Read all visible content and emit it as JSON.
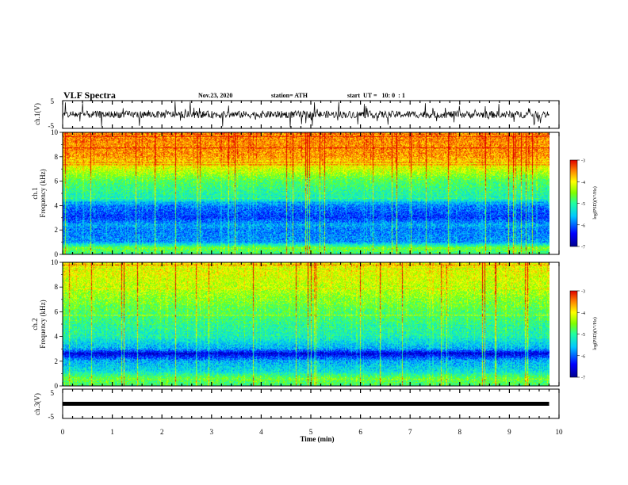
{
  "header": {
    "title": "VLF Spectra",
    "date": "Nov.23, 2020",
    "station": "station= ATH",
    "start": "start  UT =   10: 0  : 1"
  },
  "chart_data": [
    {
      "type": "line",
      "panel": "ch1-waveform",
      "ylabel": "ch.1(V)",
      "ylim": [
        -5,
        5
      ],
      "yticks": [
        "5",
        "-5"
      ],
      "xlim": [
        0,
        10
      ],
      "description_values": {
        "baseline": 0,
        "typical_range": [
          -1.2,
          1.2
        ],
        "spike_range": [
          -5,
          5
        ]
      },
      "color": "#000000"
    },
    {
      "type": "heatmap",
      "panel": "ch1-spectrogram",
      "ylabel": "ch.1\nFrequency (kHz)",
      "ylabel_lines": [
        "ch.1",
        "Frequency  (kHz)"
      ],
      "ylim": [
        0,
        10
      ],
      "yticks": [
        "0",
        "2",
        "4",
        "6",
        "8",
        "10"
      ],
      "xlim": [
        0,
        10
      ],
      "colorbar": {
        "label": "log(PSD)(V²/Hz)",
        "ticks": [
          "-3",
          "-4",
          "-5",
          "-6",
          "-7"
        ],
        "range": [
          -7,
          -3
        ]
      },
      "profile_by_freq_khz": [
        [
          0,
          -5.0
        ],
        [
          0.5,
          -4.6
        ],
        [
          1,
          -5.8
        ],
        [
          2,
          -5.9
        ],
        [
          2.4,
          -5.7
        ],
        [
          3,
          -6.2
        ],
        [
          4,
          -5.9
        ],
        [
          4.5,
          -5.2
        ],
        [
          6,
          -4.8
        ],
        [
          7,
          -4.2
        ],
        [
          8,
          -3.6
        ],
        [
          10,
          -3.5
        ]
      ]
    },
    {
      "type": "heatmap",
      "panel": "ch2-spectrogram",
      "ylabel": "ch.2\nFrequency (kHz)",
      "ylabel_lines": [
        "ch.2",
        "Frequency  (kHz)"
      ],
      "ylim": [
        0,
        10
      ],
      "yticks": [
        "0",
        "2",
        "4",
        "6",
        "8",
        "10"
      ],
      "xlim": [
        0,
        10
      ],
      "colorbar": {
        "label": "log(PSD)(V²/Hz)",
        "ticks": [
          "-3",
          "-4",
          "-5",
          "-6",
          "-7"
        ],
        "range": [
          -7,
          -3
        ]
      },
      "profile_by_freq_khz": [
        [
          0,
          -4.9
        ],
        [
          0.6,
          -4.7
        ],
        [
          1.2,
          -5.4
        ],
        [
          2,
          -5.7
        ],
        [
          2.6,
          -6.6
        ],
        [
          3,
          -5.7
        ],
        [
          4,
          -5.2
        ],
        [
          6,
          -4.8
        ],
        [
          8,
          -4.3
        ],
        [
          10,
          -4.0
        ]
      ]
    },
    {
      "type": "line",
      "panel": "ch3-waveform",
      "ylabel": "ch.3(V)",
      "ylim": [
        -5,
        5
      ],
      "yticks": [
        "5",
        "-5"
      ],
      "xlim": [
        0,
        10
      ],
      "description_values": {
        "baseline": 0,
        "typical_range": [
          -0.5,
          0.5
        ]
      },
      "color": "#000000"
    }
  ],
  "xaxis": {
    "label": "Time  (min)",
    "ticks": [
      "0",
      "1",
      "2",
      "3",
      "4",
      "5",
      "6",
      "7",
      "8",
      "9",
      "10"
    ],
    "data_end": 9.8
  }
}
